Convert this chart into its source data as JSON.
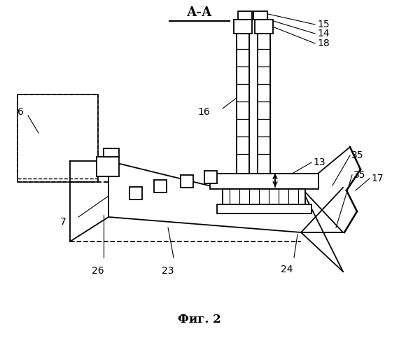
{
  "title": "А-А",
  "caption": "Фиг. 2",
  "bg_color": "#ffffff",
  "line_color": "#000000"
}
